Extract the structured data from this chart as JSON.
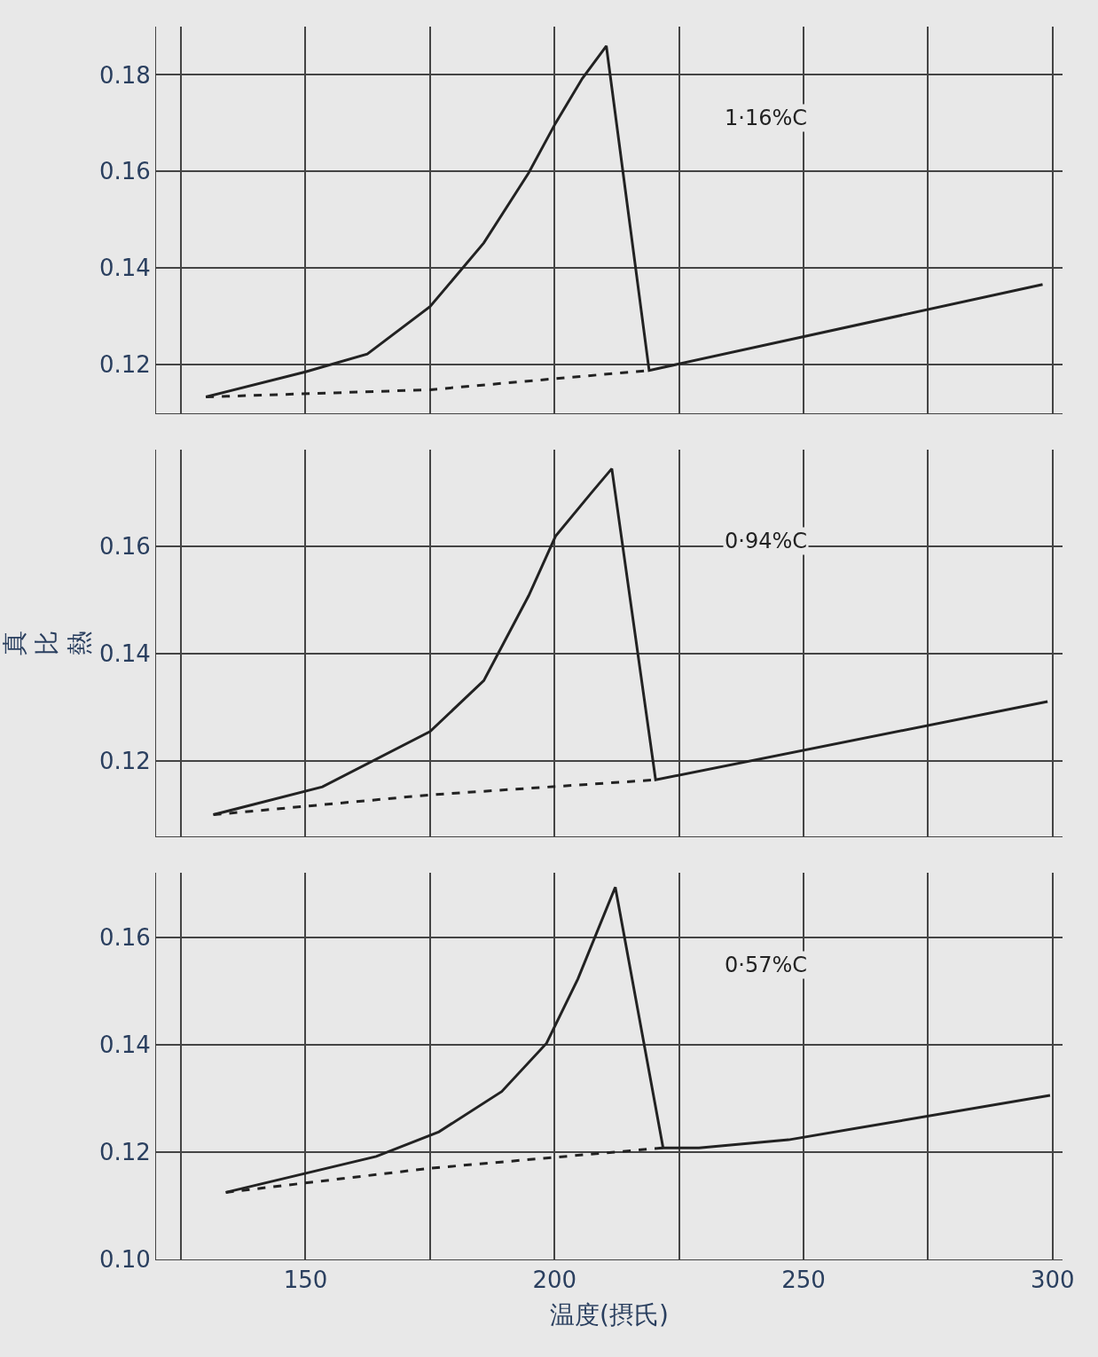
{
  "chart_data": [
    {
      "type": "line",
      "ylim": [
        0.11,
        0.19
      ],
      "yticks": [
        {
          "value": 0.18,
          "label": "0.18"
        },
        {
          "value": 0.16,
          "label": "0.16"
        },
        {
          "value": 0.14,
          "label": "0.14"
        },
        {
          "value": 0.12,
          "label": "0.12"
        }
      ],
      "xlim": [
        120,
        302
      ],
      "xticks": [
        {
          "value": 125,
          "label": null
        },
        {
          "value": 150,
          "label": null
        },
        {
          "value": 175,
          "label": null
        },
        {
          "value": 200,
          "label": null
        },
        {
          "value": 225,
          "label": null
        },
        {
          "value": 250,
          "label": null
        },
        {
          "value": 275,
          "label": null
        },
        {
          "value": 300,
          "label": null
        }
      ],
      "tick_labels": "y",
      "grid": true,
      "series": [
        {
          "name": "1·16%C",
          "color": "#222222",
          "line_style": "solid",
          "x": [
            130,
            150,
            162.4,
            175,
            185.8,
            194.8,
            200.2,
            205.6,
            210.4,
            219,
            298
          ],
          "values": [
            0.1133,
            0.1185,
            0.1222,
            0.132,
            0.1452,
            0.1597,
            0.17,
            0.1793,
            0.186,
            0.1188,
            0.1366
          ]
        },
        {
          "color": "#222222",
          "line_style": "dashed",
          "x": [
            130,
            175,
            219
          ],
          "values": [
            0.1133,
            0.1148,
            0.1188
          ]
        }
      ]
    },
    {
      "type": "line",
      "ylim": [
        0.106,
        0.178
      ],
      "yticks": [
        {
          "value": 0.16,
          "label": "0.16"
        },
        {
          "value": 0.14,
          "label": "0.14"
        },
        {
          "value": 0.12,
          "label": "0.12"
        }
      ],
      "xlim": [
        120,
        302
      ],
      "xticks": [
        {
          "value": 125,
          "label": null
        },
        {
          "value": 150,
          "label": null
        },
        {
          "value": 175,
          "label": null
        },
        {
          "value": 200,
          "label": null
        },
        {
          "value": 225,
          "label": null
        },
        {
          "value": 250,
          "label": null
        },
        {
          "value": 275,
          "label": null
        },
        {
          "value": 300,
          "label": null
        }
      ],
      "tick_labels": "y",
      "grid": true,
      "ylabel": "真比熱",
      "series": [
        {
          "name": "0·94%C",
          "color": "#222222",
          "line_style": "solid",
          "x": [
            131.5,
            153.4,
            175,
            185.8,
            194.8,
            200.2,
            207.4,
            211.5,
            220.3,
            299
          ],
          "values": [
            0.11,
            0.1152,
            0.1255,
            0.135,
            0.1508,
            0.1619,
            0.17,
            0.1745,
            0.1165,
            0.1311
          ]
        },
        {
          "color": "#222222",
          "line_style": "dashed",
          "x": [
            131.5,
            175,
            220.3
          ],
          "values": [
            0.11,
            0.1137,
            0.1165
          ]
        }
      ]
    },
    {
      "type": "line",
      "ylim": [
        0.1,
        0.172
      ],
      "yticks": [
        {
          "value": 0.16,
          "label": "0.16"
        },
        {
          "value": 0.14,
          "label": "0.14"
        },
        {
          "value": 0.12,
          "label": "0.12"
        },
        {
          "value": 0.1,
          "label": "0.10"
        }
      ],
      "xlim": [
        120,
        302
      ],
      "xticks": [
        {
          "value": 125,
          "label": null
        },
        150,
        {
          "value": 175,
          "label": null
        },
        200,
        {
          "value": 225,
          "label": null
        },
        250,
        {
          "value": 275,
          "label": null
        },
        300
      ],
      "grid": true,
      "xlabel": "温度(摂氏)",
      "series": [
        {
          "name": "0·57%C",
          "color": "#222222",
          "line_style": "solid",
          "x": [
            134,
            164.2,
            176.8,
            189.4,
            198.4,
            204.7,
            212.2,
            221.8,
            229,
            247,
            299.5
          ],
          "values": [
            0.1125,
            0.1192,
            0.1238,
            0.1313,
            0.1403,
            0.1523,
            0.1694,
            0.1208,
            0.1208,
            0.1223,
            0.1306
          ]
        },
        {
          "color": "#222222",
          "line_style": "dashed",
          "x": [
            134,
            175,
            221.8
          ],
          "values": [
            0.1125,
            0.117,
            0.1208
          ]
        }
      ]
    }
  ]
}
